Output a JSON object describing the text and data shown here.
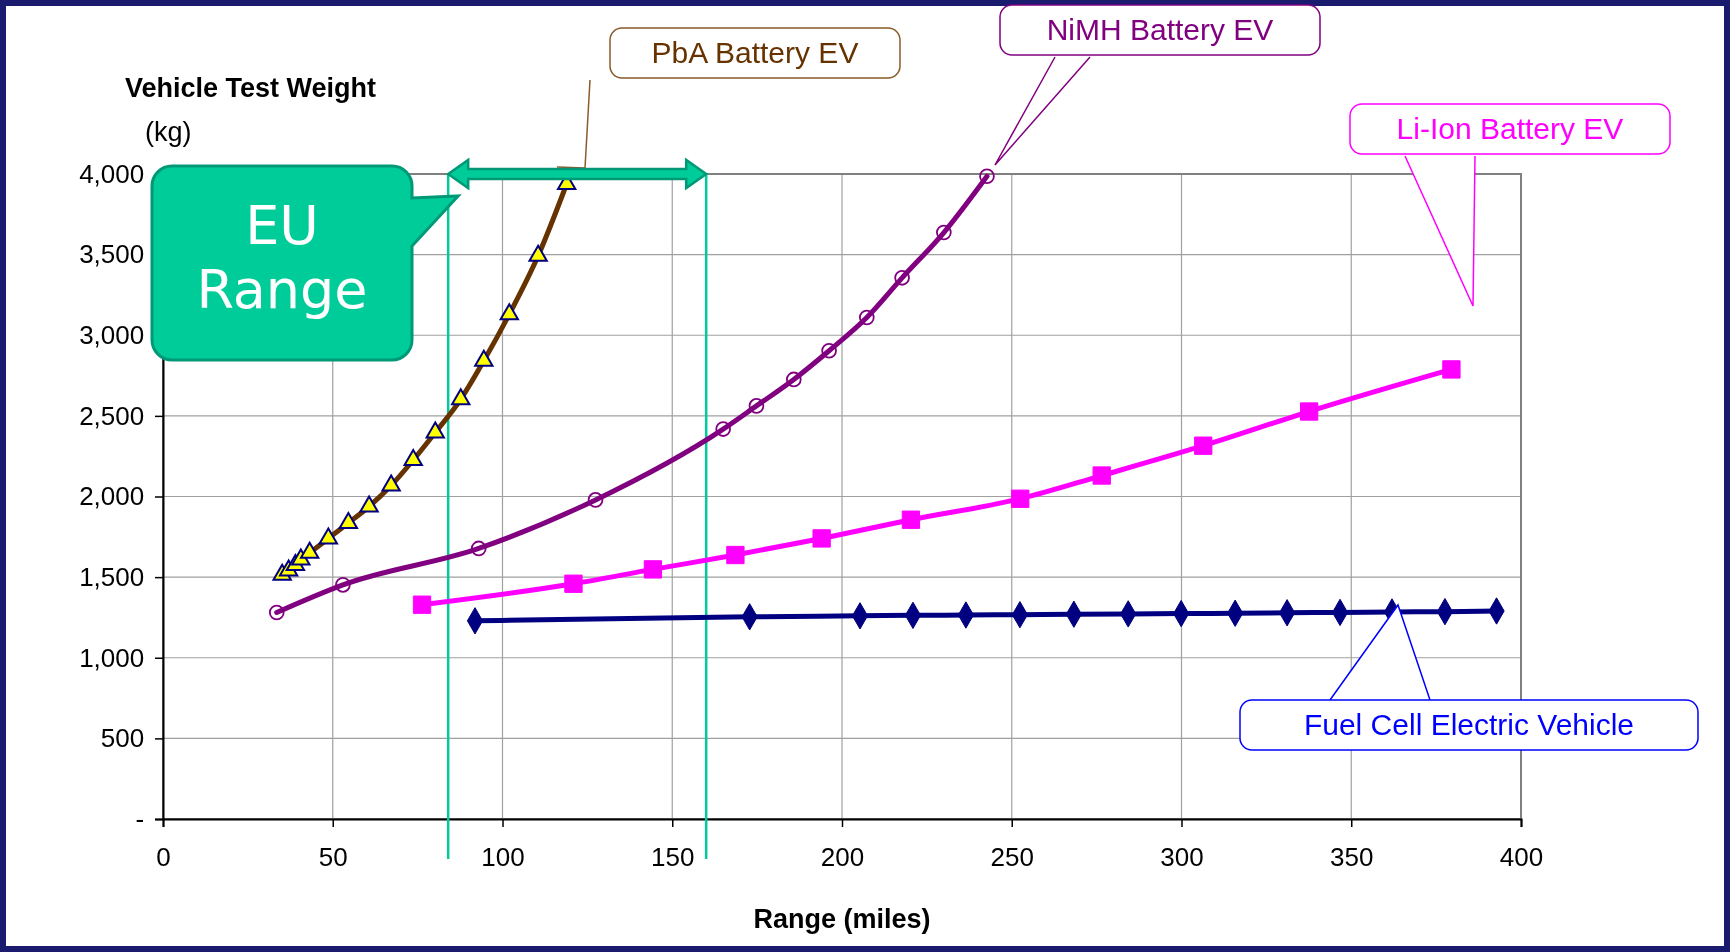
{
  "chart_data": {
    "type": "line",
    "ylabel": "Vehicle Test Weight\n(kg)",
    "xlabel": "Range (miles)",
    "xlim": [
      0,
      400
    ],
    "xticks": [
      0,
      50,
      100,
      150,
      200,
      250,
      300,
      350,
      400
    ],
    "ylim": [
      0,
      4000
    ],
    "yticks": [
      {
        "value": 0,
        "label": "-"
      },
      500,
      {
        "value": 1000,
        "label": "1,000"
      },
      {
        "value": 1500,
        "label": "1,500"
      },
      {
        "value": 2000,
        "label": "2,000"
      },
      {
        "value": 2500,
        "label": "2,500"
      },
      {
        "value": 3000,
        "label": "3,000"
      },
      {
        "value": 3500,
        "label": "3,500"
      },
      {
        "value": 4000,
        "label": "4,000"
      }
    ],
    "grid": true,
    "legend": false,
    "series": [
      {
        "name": "PbA Battery EV",
        "color": "#663300",
        "marker": "triangle",
        "x": [
          35.1,
          37.0,
          39.0,
          40.6,
          43.2,
          48.7,
          54.6,
          60.7,
          67.2,
          73.7,
          80.2,
          87.7,
          94.5,
          102,
          110.5,
          118.9
        ],
        "values": [
          1514,
          1541,
          1575,
          1610,
          1651,
          1740,
          1836,
          1938,
          2068,
          2226,
          2397,
          2603,
          2842,
          3130,
          3493,
          3938
        ]
      },
      {
        "name": "NiMH Battery EV",
        "color": "#800080",
        "marker": "circle",
        "x": [
          33.5,
          53,
          93,
          127.4,
          165,
          174.8,
          185.8,
          196.2,
          207.3,
          217.7,
          230,
          242.7
        ],
        "values": [
          1281,
          1452,
          1678,
          1979,
          2418,
          2562,
          2726,
          2904,
          3110,
          3356,
          3637,
          3986
        ]
      },
      {
        "name": "Li-Ion Battery EV",
        "color": "#ff00ff",
        "marker": "square",
        "x": [
          76.3,
          120.9,
          144.3,
          168.6,
          194,
          220.3,
          252.5,
          276.5,
          306.4,
          337.6,
          379.5
        ],
        "values": [
          1329,
          1459,
          1548,
          1637,
          1740,
          1856,
          1986,
          2130,
          2315,
          2527,
          2788
        ]
      },
      {
        "name": "Fuel Cell Electric Vehicle",
        "color": "#000080",
        "marker": "diamond",
        "x": [
          91.9,
          172.8,
          205.3,
          220.9,
          236.5,
          252.4,
          268.3,
          284.3,
          299.9,
          315.8,
          331.1,
          346.7,
          362,
          377.6,
          392.8
        ],
        "values": [
          1229,
          1254,
          1260,
          1263,
          1265,
          1267,
          1270,
          1272,
          1274,
          1276,
          1279,
          1281,
          1284,
          1286,
          1290
        ]
      }
    ],
    "ref_lines": [
      {
        "axis": "x",
        "value": 84,
        "color": "#00cc99"
      },
      {
        "axis": "x",
        "value": 160,
        "color": "#00cc99"
      }
    ],
    "annotations": [
      {
        "text": "EU Range",
        "x": 84,
        "y": 4000
      }
    ]
  }
}
